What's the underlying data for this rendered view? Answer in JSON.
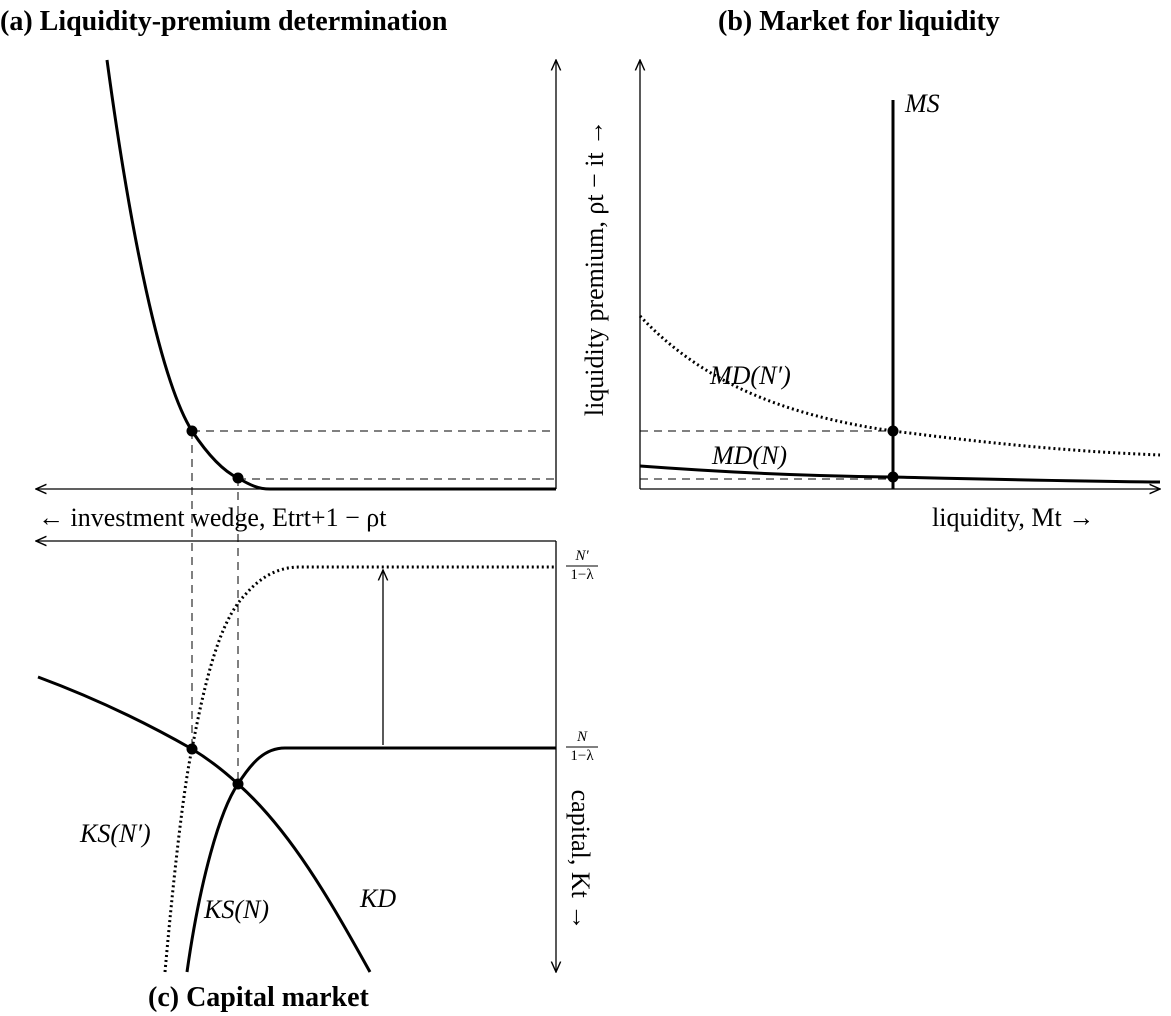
{
  "panels": [
    {
      "title": "(a) Liquidity-premium determination"
    },
    {
      "title": "(b) Market for liquidity"
    },
    {
      "title": "(c) Capital market"
    }
  ],
  "axis_labels": {
    "liquidity_premium": "liquidity premium, ρt − it →",
    "investment_wedge": "← investment wedge, Etrt+1 − ρt",
    "liquidity": "liquidity, Mt →",
    "capital": "capital, Kt →"
  },
  "curve_labels": {
    "ms": "MS",
    "md_n_prime": "MD(N′)",
    "md_n": "MD(N)",
    "ks_n_prime": "KS(N′)",
    "ks_n": "KS(N)",
    "kd": "KD"
  },
  "levels": {
    "n_prime": {
      "numerator": "N′",
      "denominator": "1−λ"
    },
    "n": {
      "numerator": "N",
      "denominator": "1−λ"
    }
  }
}
